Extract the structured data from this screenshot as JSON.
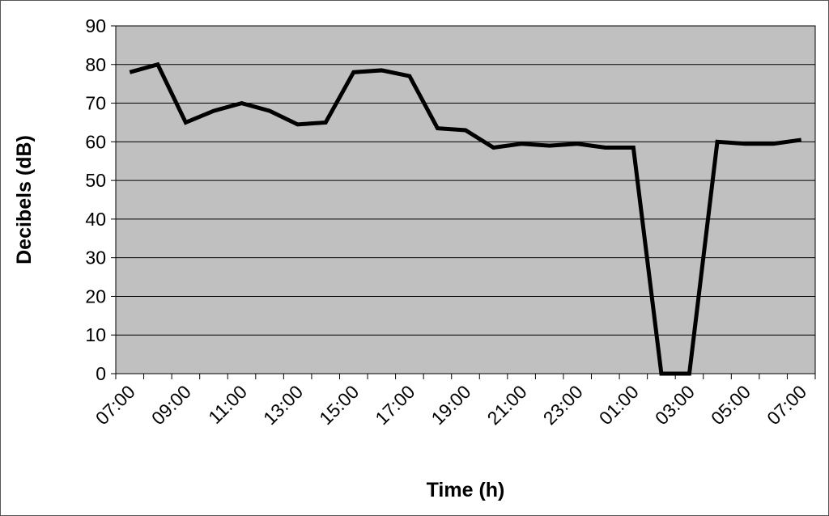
{
  "chart_data": {
    "type": "line",
    "x_label": "Time (h)",
    "y_label": "Decibels (dB)",
    "categories": [
      "07:00",
      null,
      "09:00",
      null,
      "11:00",
      null,
      "13:00",
      null,
      "15:00",
      null,
      "17:00",
      null,
      "19:00",
      null,
      "21:00",
      null,
      "23:00",
      null,
      "01:00",
      null,
      "03:00",
      null,
      "05:00",
      null,
      "07:00"
    ],
    "series": [
      {
        "color": "#000000",
        "values": [
          78,
          80,
          65,
          68,
          70,
          68,
          64.5,
          65,
          78,
          78.5,
          77,
          63.5,
          63,
          58.5,
          59.5,
          59,
          59.5,
          58.5,
          58.5,
          0,
          0,
          60,
          59.5,
          59.5,
          60.5
        ]
      }
    ],
    "ylim": [
      0,
      90
    ],
    "yticks": [
      0,
      10,
      20,
      30,
      40,
      50,
      60,
      70,
      80,
      90
    ],
    "grid": true
  }
}
